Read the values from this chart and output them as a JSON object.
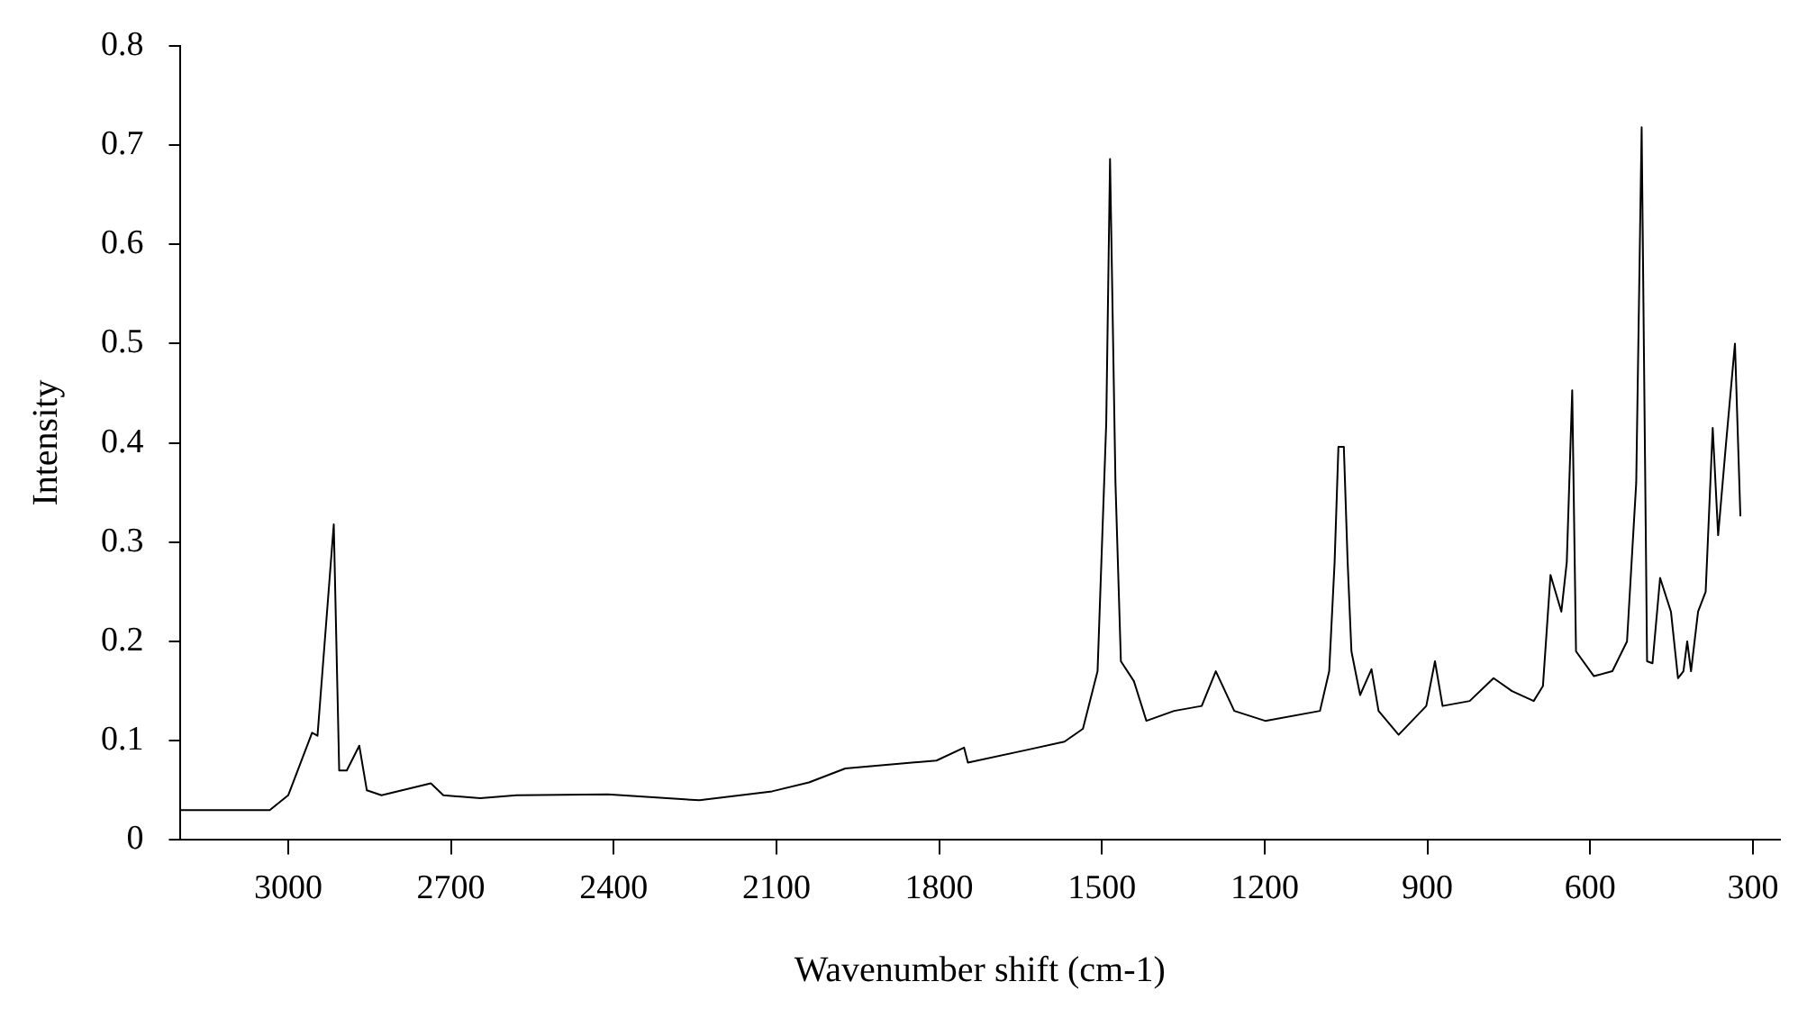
{
  "chart_data": {
    "type": "line",
    "xlabel": "Wavenumber shift (cm-1)",
    "ylabel": "Intensity",
    "x": [
      3200,
      3034,
      3000,
      2956,
      2946,
      2916,
      2906,
      2892,
      2869,
      2855,
      2828,
      2737,
      2714,
      2646,
      2579,
      2411,
      2242,
      2108,
      2040,
      1973,
      1805,
      1754,
      1747,
      1636,
      1569,
      1535,
      1508,
      1492,
      1485,
      1475,
      1465,
      1441,
      1418,
      1367,
      1316,
      1290,
      1256,
      1199,
      1098,
      1081,
      1071,
      1064,
      1054,
      1047,
      1040,
      1024,
      1003,
      990,
      953,
      902,
      886,
      872,
      822,
      778,
      744,
      704,
      687,
      673,
      653,
      643,
      633,
      626,
      593,
      559,
      532,
      515,
      505,
      495,
      485,
      471,
      451,
      438,
      428,
      421,
      414,
      401,
      387,
      374,
      364,
      350,
      333,
      323
    ],
    "series": [
      {
        "color": "#000000",
        "values": [
          0.03,
          0.03,
          0.045,
          0.108,
          0.105,
          0.318,
          0.07,
          0.07,
          0.095,
          0.05,
          0.045,
          0.057,
          0.045,
          0.042,
          0.045,
          0.046,
          0.04,
          0.049,
          0.058,
          0.072,
          0.08,
          0.093,
          0.078,
          0.091,
          0.099,
          0.112,
          0.17,
          0.42,
          0.686,
          0.36,
          0.18,
          0.16,
          0.12,
          0.13,
          0.135,
          0.17,
          0.13,
          0.12,
          0.13,
          0.17,
          0.28,
          0.396,
          0.396,
          0.28,
          0.19,
          0.146,
          0.172,
          0.13,
          0.106,
          0.135,
          0.18,
          0.135,
          0.14,
          0.163,
          0.15,
          0.14,
          0.155,
          0.267,
          0.23,
          0.28,
          0.453,
          0.19,
          0.165,
          0.17,
          0.2,
          0.36,
          0.718,
          0.18,
          0.178,
          0.264,
          0.23,
          0.163,
          0.17,
          0.2,
          0.17,
          0.23,
          0.25,
          0.415,
          0.307,
          0.396,
          0.5,
          0.326
        ]
      }
    ],
    "xlim": [
      3200,
      250
    ],
    "xticks": [
      3000,
      2700,
      2400,
      2100,
      1800,
      1500,
      1200,
      900,
      600,
      300
    ],
    "ylim": [
      0,
      0.8
    ],
    "yticks": [
      0,
      0.1,
      0.2,
      0.3,
      0.4,
      0.5,
      0.6,
      0.7,
      0.8
    ],
    "grid": false,
    "legend": false,
    "marker": "none",
    "line_style": "solid"
  }
}
